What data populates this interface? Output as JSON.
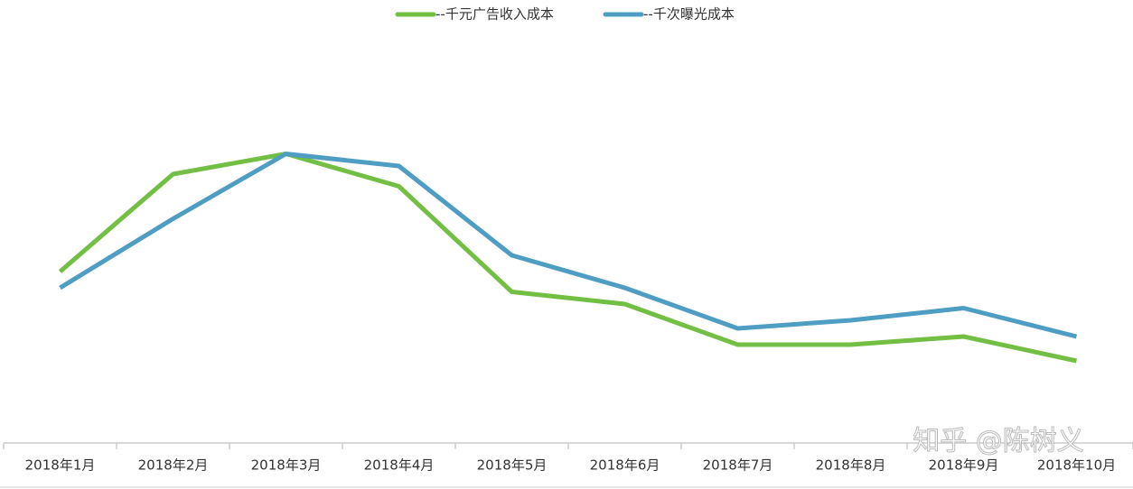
{
  "chart_data": {
    "type": "line",
    "categories": [
      "2018年1月",
      "2018年2月",
      "2018年3月",
      "2018年4月",
      "2018年5月",
      "2018年6月",
      "2018年7月",
      "2018年8月",
      "2018年9月",
      "2018年10月"
    ],
    "series": [
      {
        "name": "--千元广告收入成本",
        "color": "#72bf44",
        "values": [
          42,
          66,
          71,
          63,
          37,
          34,
          24,
          24,
          26,
          20
        ]
      },
      {
        "name": "--千次曝光成本",
        "color": "#4e9dc3",
        "values": [
          38,
          55,
          71,
          68,
          46,
          38,
          28,
          30,
          33,
          26
        ]
      }
    ],
    "ylim": [
      0,
      100
    ],
    "legend": "top",
    "watermark": "知乎 @陈树义"
  }
}
